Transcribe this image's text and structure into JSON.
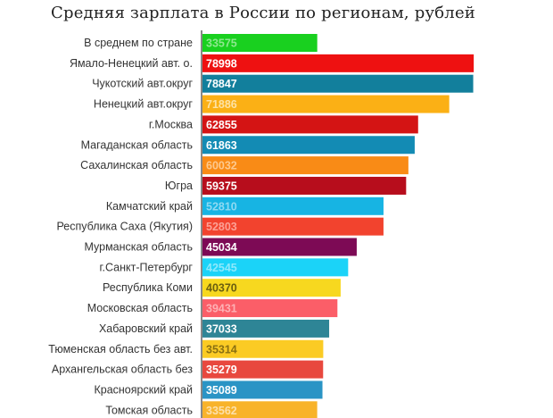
{
  "chart_data": {
    "type": "bar",
    "orientation": "horizontal",
    "title": "Средняя зарплата в России по регионам, рублей",
    "xlabel": "",
    "ylabel": "",
    "xlim": [
      0,
      80000
    ],
    "grid": false,
    "legend": "none",
    "categories": [
      "В среднем по стране",
      "Ямало-Ненецкий авт. о.",
      "Чукотский авт.округ",
      "Ненецкий авт.округ",
      "г.Москва",
      "Магаданская область",
      "Сахалинская область",
      "Югра",
      "Камчатский край",
      "Республика Саха (Якутия)",
      "Мурманская область",
      "г.Санкт-Петербург",
      "Республика Коми",
      "Московская область",
      "Хабаровский край",
      "Тюменская область без авт.",
      "Архангельская область без",
      "Красноярский край",
      "Томская область"
    ],
    "values": [
      33575,
      78998,
      78847,
      71886,
      62855,
      61863,
      60032,
      59375,
      52810,
      52803,
      45034,
      42545,
      40370,
      39431,
      37033,
      35314,
      35279,
      35089,
      33562
    ],
    "value_labels": [
      "33575",
      "78998",
      "78847",
      "71886",
      "62855",
      "61863",
      "60032",
      "59375",
      "52810",
      "52803",
      "45034",
      "42545",
      "40370",
      "39431",
      "37033",
      "35314",
      "35279",
      "35089",
      "33562"
    ],
    "colors": [
      "#19d01f",
      "#ee1111",
      "#127f9c",
      "#fbb015",
      "#d41414",
      "#138bb4",
      "#f98b16",
      "#b70d1c",
      "#17b4e3",
      "#f2432e",
      "#7d0a55",
      "#1bd3f8",
      "#f7d81f",
      "#fb5e68",
      "#2e8596",
      "#fbcb24",
      "#e8483e",
      "#2a94c5",
      "#f8b32a"
    ],
    "label_colors": [
      "#8ee88f",
      "#ffffff",
      "#ffffff",
      "#fde2a4",
      "#ffffff",
      "#ffffff",
      "#fdc98e",
      "#ffffff",
      "#8fdaf2",
      "#fca196",
      "#ffffff",
      "#8de9fc",
      "#6a5e10",
      "#fdb0b4",
      "#ffffff",
      "#8a7012",
      "#ffffff",
      "#ffffff",
      "#fde0a9"
    ],
    "axis_color": "#888888"
  }
}
